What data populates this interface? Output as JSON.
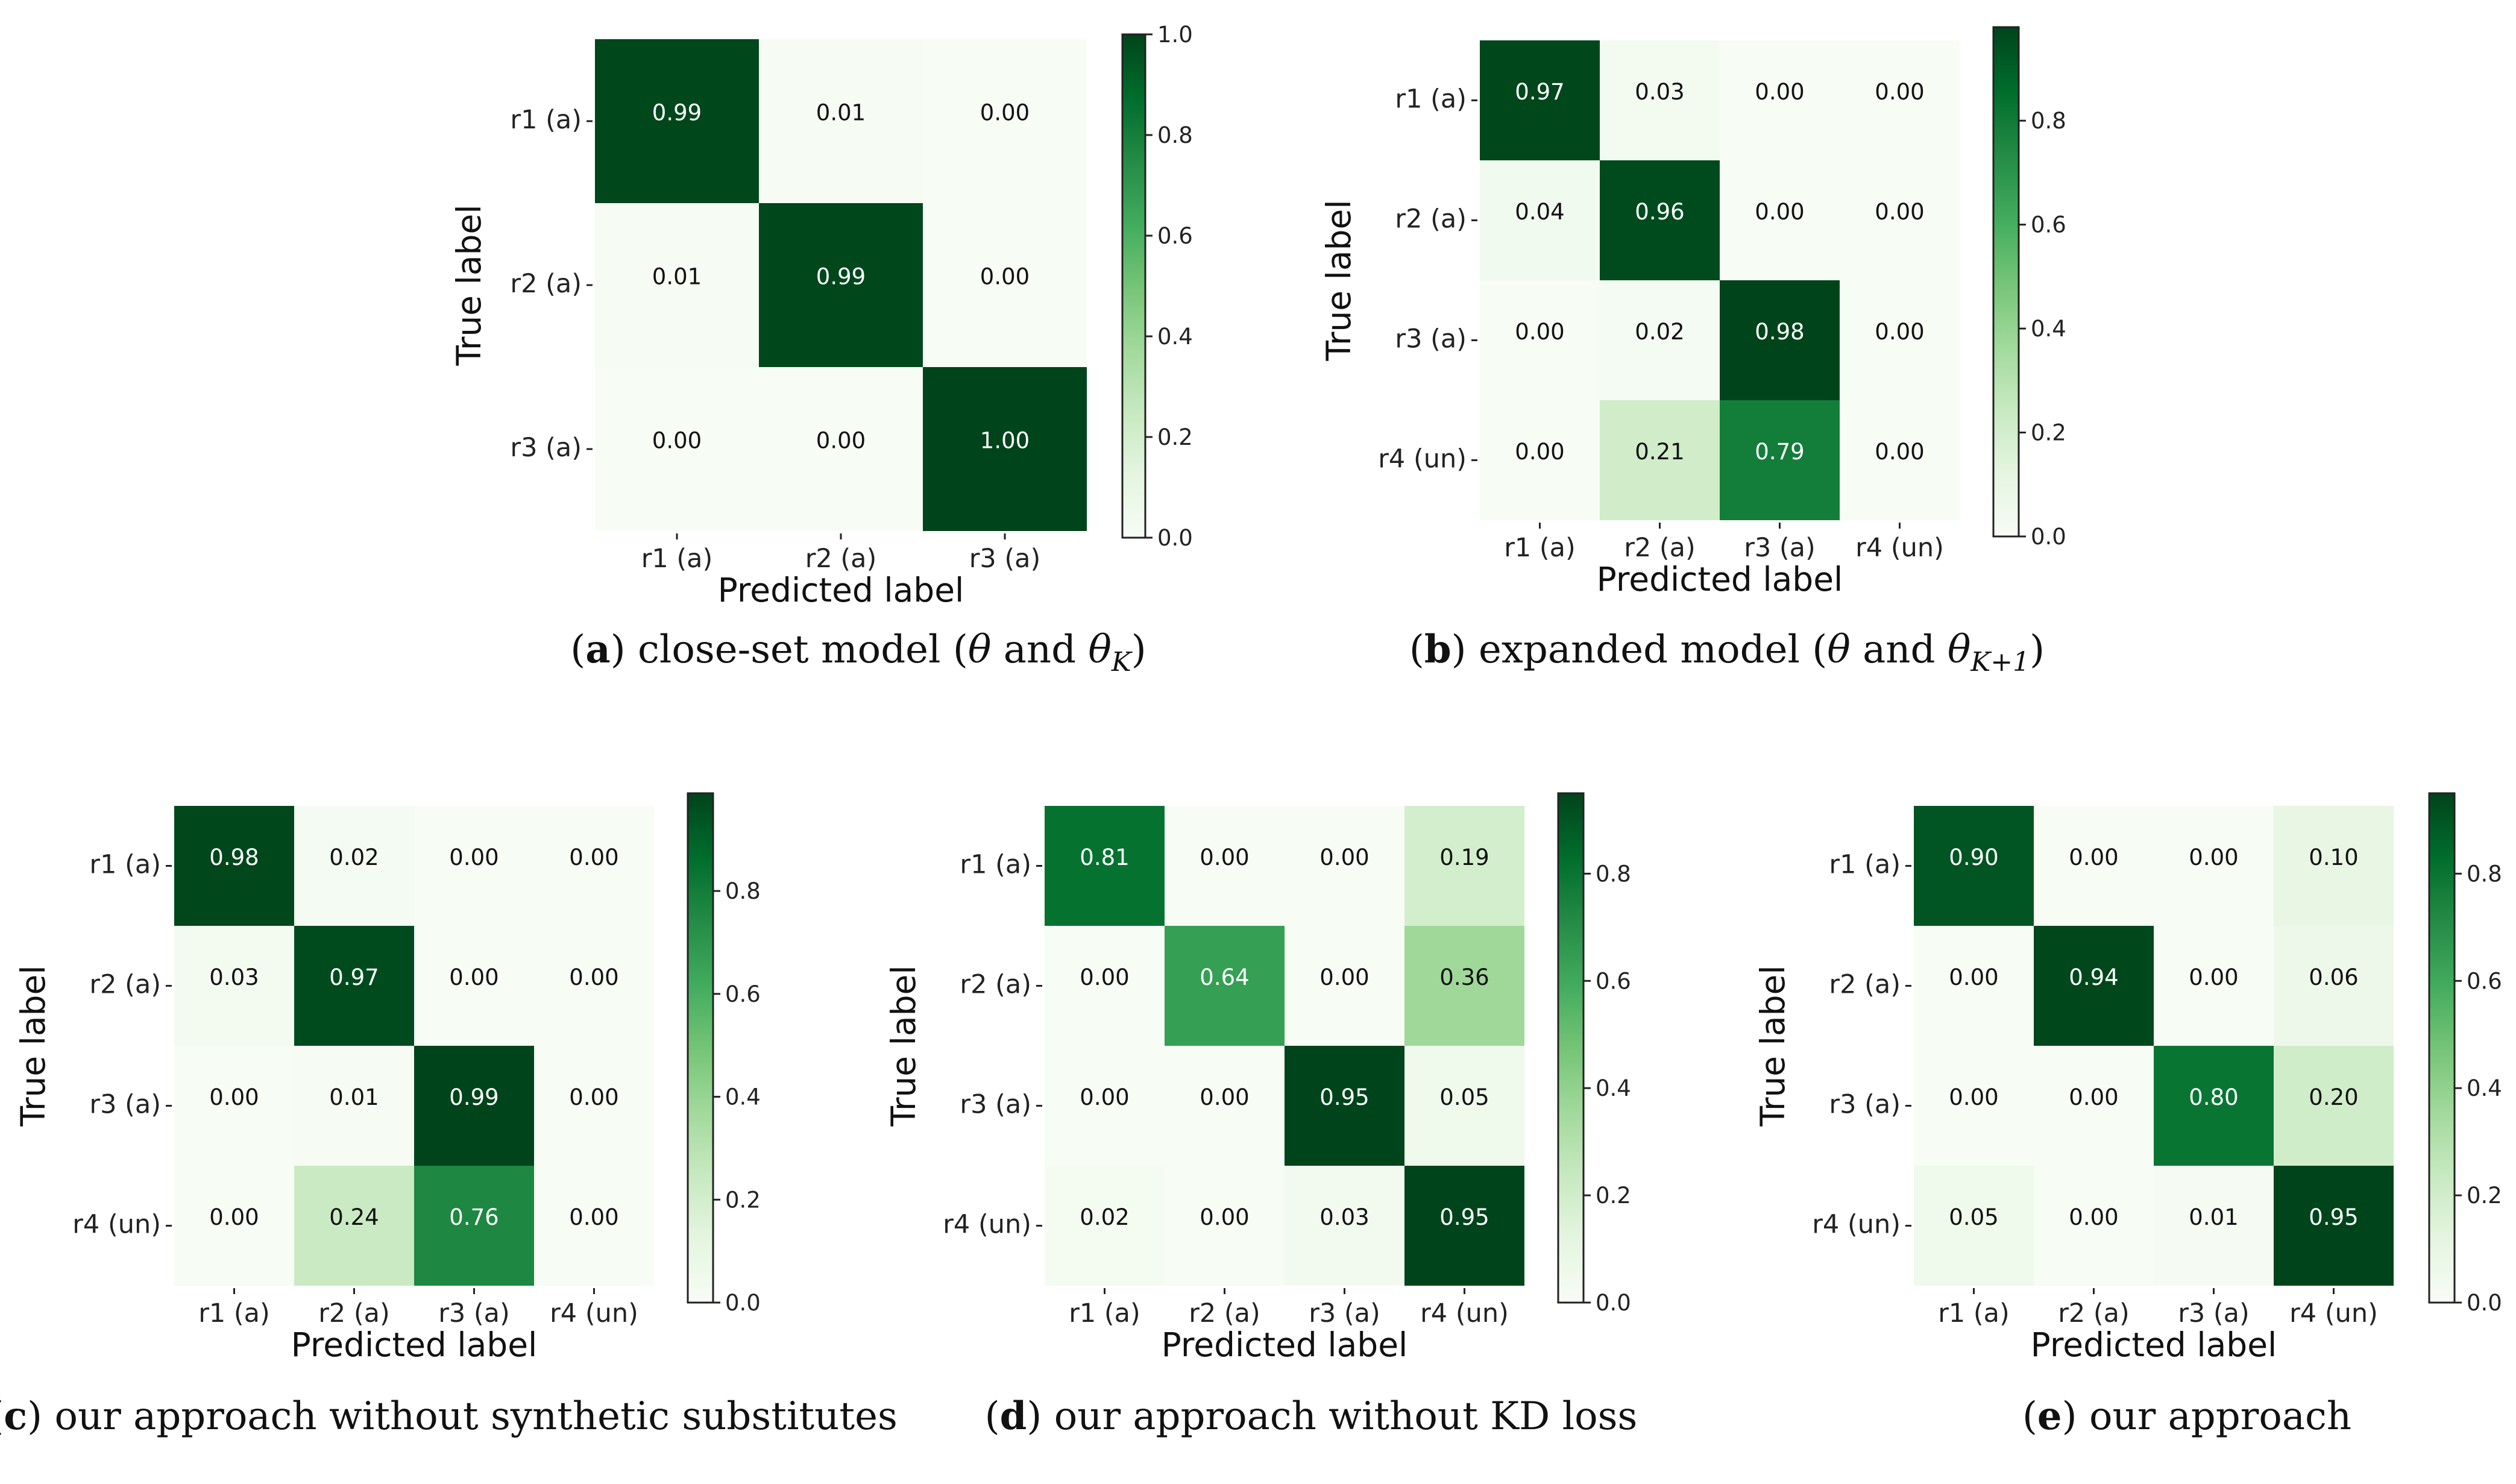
{
  "chart_data": [
    {
      "type": "heatmap",
      "id": "a",
      "caption_letter": "a",
      "caption_text": "close-set model (θ and θ_K)",
      "caption_parts": [
        "close-set model (",
        "θ",
        " and ",
        "θ",
        "K",
        ")"
      ],
      "xlabel": "Predicted label",
      "ylabel": "True label",
      "x_ticks": [
        "r1 (a)",
        "r2 (a)",
        "r3 (a)"
      ],
      "y_ticks": [
        "r1 (a)",
        "r2 (a)",
        "r3 (a)"
      ],
      "values": [
        [
          0.99,
          0.01,
          0.0
        ],
        [
          0.01,
          0.99,
          0.0
        ],
        [
          0.0,
          0.0,
          1.0
        ]
      ],
      "value_labels": [
        [
          "0.99",
          "0.01",
          "0.00"
        ],
        [
          "0.01",
          "0.99",
          "0.00"
        ],
        [
          "0.00",
          "0.00",
          "1.00"
        ]
      ],
      "vmin": 0.0,
      "vmax": 1.0,
      "colorbar_ticks": [
        0.0,
        0.2,
        0.4,
        0.6,
        0.8,
        1.0
      ],
      "colorbar_labels": [
        "0.0",
        "0.2",
        "0.4",
        "0.6",
        "0.8",
        "1.0"
      ],
      "colormap": "Greens"
    },
    {
      "type": "heatmap",
      "id": "b",
      "caption_letter": "b",
      "caption_text": "expanded model (θ and θ_K+1)",
      "caption_parts": [
        "expanded model (",
        "θ",
        " and ",
        "θ",
        "K+1",
        ")"
      ],
      "xlabel": "Predicted label",
      "ylabel": "True label",
      "x_ticks": [
        "r1 (a)",
        "r2 (a)",
        "r3 (a)",
        "r4 (un)"
      ],
      "y_ticks": [
        "r1 (a)",
        "r2 (a)",
        "r3 (a)",
        "r4 (un)"
      ],
      "values": [
        [
          0.97,
          0.03,
          0.0,
          0.0
        ],
        [
          0.04,
          0.96,
          0.0,
          0.0
        ],
        [
          0.0,
          0.02,
          0.98,
          0.0
        ],
        [
          0.0,
          0.21,
          0.79,
          0.0
        ]
      ],
      "value_labels": [
        [
          "0.97",
          "0.03",
          "0.00",
          "0.00"
        ],
        [
          "0.04",
          "0.96",
          "0.00",
          "0.00"
        ],
        [
          "0.00",
          "0.02",
          "0.98",
          "0.00"
        ],
        [
          "0.00",
          "0.21",
          "0.79",
          "0.00"
        ]
      ],
      "vmin": 0.0,
      "vmax": 0.98,
      "colorbar_ticks": [
        0.0,
        0.2,
        0.4,
        0.6,
        0.8
      ],
      "colorbar_labels": [
        "0.0",
        "0.2",
        "0.4",
        "0.6",
        "0.8"
      ],
      "colormap": "Greens"
    },
    {
      "type": "heatmap",
      "id": "c",
      "caption_letter": "c",
      "caption_text": "our approach without synthetic substitutes",
      "caption_parts": [
        "our approach without synthetic substitutes"
      ],
      "xlabel": "Predicted label",
      "ylabel": "True label",
      "x_ticks": [
        "r1 (a)",
        "r2 (a)",
        "r3 (a)",
        "r4 (un)"
      ],
      "y_ticks": [
        "r1 (a)",
        "r2 (a)",
        "r3 (a)",
        "r4 (un)"
      ],
      "values": [
        [
          0.98,
          0.02,
          0.0,
          0.0
        ],
        [
          0.03,
          0.97,
          0.0,
          0.0
        ],
        [
          0.0,
          0.01,
          0.99,
          0.0
        ],
        [
          0.0,
          0.24,
          0.76,
          0.0
        ]
      ],
      "value_labels": [
        [
          "0.98",
          "0.02",
          "0.00",
          "0.00"
        ],
        [
          "0.03",
          "0.97",
          "0.00",
          "0.00"
        ],
        [
          "0.00",
          "0.01",
          "0.99",
          "0.00"
        ],
        [
          "0.00",
          "0.24",
          "0.76",
          "0.00"
        ]
      ],
      "vmin": 0.0,
      "vmax": 0.99,
      "colorbar_ticks": [
        0.0,
        0.2,
        0.4,
        0.6,
        0.8
      ],
      "colorbar_labels": [
        "0.0",
        "0.2",
        "0.4",
        "0.6",
        "0.8"
      ],
      "colormap": "Greens"
    },
    {
      "type": "heatmap",
      "id": "d",
      "caption_letter": "d",
      "caption_text": "our approach without KD loss",
      "caption_parts": [
        "our approach without KD loss"
      ],
      "xlabel": "Predicted label",
      "ylabel": "True label",
      "x_ticks": [
        "r1 (a)",
        "r2 (a)",
        "r3 (a)",
        "r4 (un)"
      ],
      "y_ticks": [
        "r1 (a)",
        "r2 (a)",
        "r3 (a)",
        "r4 (un)"
      ],
      "values": [
        [
          0.81,
          0.0,
          0.0,
          0.19
        ],
        [
          0.0,
          0.64,
          0.0,
          0.36
        ],
        [
          0.0,
          0.0,
          0.95,
          0.05
        ],
        [
          0.02,
          0.0,
          0.03,
          0.95
        ]
      ],
      "value_labels": [
        [
          "0.81",
          "0.00",
          "0.00",
          "0.19"
        ],
        [
          "0.00",
          "0.64",
          "0.00",
          "0.36"
        ],
        [
          "0.00",
          "0.00",
          "0.95",
          "0.05"
        ],
        [
          "0.02",
          "0.00",
          "0.03",
          "0.95"
        ]
      ],
      "vmin": 0.0,
      "vmax": 0.95,
      "colorbar_ticks": [
        0.0,
        0.2,
        0.4,
        0.6,
        0.8
      ],
      "colorbar_labels": [
        "0.0",
        "0.2",
        "0.4",
        "0.6",
        "0.8"
      ],
      "colormap": "Greens"
    },
    {
      "type": "heatmap",
      "id": "e",
      "caption_letter": "e",
      "caption_text": "our approach",
      "caption_parts": [
        "our approach"
      ],
      "xlabel": "Predicted label",
      "ylabel": "True label",
      "x_ticks": [
        "r1 (a)",
        "r2 (a)",
        "r3 (a)",
        "r4 (un)"
      ],
      "y_ticks": [
        "r1 (a)",
        "r2 (a)",
        "r3 (a)",
        "r4 (un)"
      ],
      "values": [
        [
          0.9,
          0.0,
          0.0,
          0.1
        ],
        [
          0.0,
          0.94,
          0.0,
          0.06
        ],
        [
          0.0,
          0.0,
          0.8,
          0.2
        ],
        [
          0.05,
          0.0,
          0.01,
          0.95
        ]
      ],
      "value_labels": [
        [
          "0.90",
          "0.00",
          "0.00",
          "0.10"
        ],
        [
          "0.00",
          "0.94",
          "0.00",
          "0.06"
        ],
        [
          "0.00",
          "0.00",
          "0.80",
          "0.20"
        ],
        [
          "0.05",
          "0.00",
          "0.01",
          "0.95"
        ]
      ],
      "vmin": 0.0,
      "vmax": 0.95,
      "colorbar_ticks": [
        0.0,
        0.2,
        0.4,
        0.6,
        0.8
      ],
      "colorbar_labels": [
        "0.0",
        "0.2",
        "0.4",
        "0.6",
        "0.8"
      ],
      "colormap": "Greens"
    }
  ]
}
